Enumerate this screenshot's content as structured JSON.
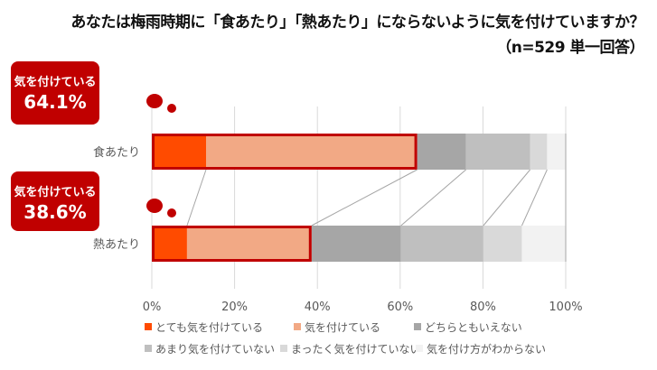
{
  "title": "あなたは梅雨時期に「食あたり」「熱あたり」にならないように気を付けていますか？",
  "subtitle": "（n=529 単一回答）",
  "callouts": [
    {
      "label": "気を付けている",
      "value": "64.1%"
    },
    {
      "label": "気を付けている",
      "value": "38.6%"
    }
  ],
  "chart_data": {
    "type": "bar",
    "orientation": "horizontal-stacked-100",
    "categories": [
      "食あたり",
      "熱あたり"
    ],
    "series": [
      {
        "name": "とても気を付けている",
        "color": "#ff4b00",
        "values": [
          13.1,
          8.5
        ]
      },
      {
        "name": "気を付けている",
        "color": "#f2a985",
        "values": [
          51.0,
          30.1
        ]
      },
      {
        "name": "どちらともいえない",
        "color": "#a6a6a6",
        "values": [
          11.8,
          21.6
        ]
      },
      {
        "name": "あまり気を付けていない",
        "color": "#bfbfbf",
        "values": [
          15.5,
          19.9
        ]
      },
      {
        "name": "まったく気を付けていない",
        "color": "#d9d9d9",
        "values": [
          4.1,
          9.3
        ]
      },
      {
        "name": "気を付け方がわからない",
        "color": "#f2f2f2",
        "values": [
          4.5,
          10.6
        ]
      }
    ],
    "xticks": [
      "0%",
      "20%",
      "40%",
      "60%",
      "80%",
      "100%"
    ],
    "xlim": [
      0,
      100
    ],
    "grid": true,
    "legend": "bottom",
    "highlight_color": "#c00000"
  }
}
